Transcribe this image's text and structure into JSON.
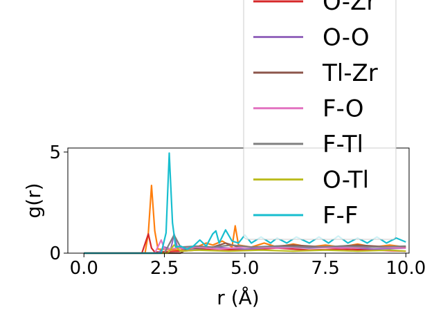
{
  "chart_data": {
    "type": "line",
    "title": "",
    "xlabel": "r (Å)",
    "ylabel": "g(r)",
    "xlim": [
      -0.5,
      10.1
    ],
    "ylim": [
      0,
      5.2
    ],
    "x_ticks": [
      "0.0",
      "2.5",
      "5.0",
      "7.5",
      "10.0"
    ],
    "x_tick_values": [
      0,
      2.5,
      5,
      7.5,
      10
    ],
    "y_ticks": [
      "0",
      "5"
    ],
    "y_tick_values": [
      0,
      5
    ],
    "grid": false,
    "legend_placement": "upper-right, extending above the axes",
    "series": [
      {
        "name": "O-Zr",
        "color": "#d62728",
        "points": [
          [
            0,
            0
          ],
          [
            1.8,
            0
          ],
          [
            2.0,
            0.95
          ],
          [
            2.1,
            0.25
          ],
          [
            2.2,
            0.05
          ],
          [
            3.0,
            0.1
          ],
          [
            4.0,
            0.2
          ],
          [
            5.0,
            0.15
          ],
          [
            6.0,
            0.25
          ],
          [
            7.0,
            0.15
          ],
          [
            8.0,
            0.2
          ],
          [
            9.0,
            0.15
          ],
          [
            10.0,
            0.1
          ]
        ]
      },
      {
        "name": "O-O",
        "color": "#9467bd",
        "points": [
          [
            0,
            0
          ],
          [
            2.3,
            0
          ],
          [
            2.5,
            0.3
          ],
          [
            2.7,
            0.2
          ],
          [
            2.8,
            0.95
          ],
          [
            2.9,
            0.3
          ],
          [
            3.2,
            0.15
          ],
          [
            4.0,
            0.3
          ],
          [
            5.0,
            0.2
          ],
          [
            6.0,
            0.3
          ],
          [
            7.0,
            0.25
          ],
          [
            8.0,
            0.3
          ],
          [
            9.0,
            0.2
          ],
          [
            10.0,
            0.25
          ]
        ]
      },
      {
        "name": "Tl-Zr",
        "color": "#8c564b",
        "points": [
          [
            0,
            0
          ],
          [
            3.0,
            0
          ],
          [
            3.3,
            0.3
          ],
          [
            3.6,
            0.2
          ],
          [
            4.0,
            0.3
          ],
          [
            4.4,
            0.5
          ],
          [
            4.8,
            0.3
          ],
          [
            5.5,
            0.3
          ],
          [
            6.5,
            0.4
          ],
          [
            7.5,
            0.3
          ],
          [
            8.5,
            0.4
          ],
          [
            9.5,
            0.3
          ],
          [
            10.0,
            0.3
          ]
        ]
      },
      {
        "name": "F-O",
        "color": "#e377c2",
        "points": [
          [
            0,
            0
          ],
          [
            2.2,
            0
          ],
          [
            2.4,
            0.65
          ],
          [
            2.5,
            0.2
          ],
          [
            3.0,
            0.25
          ],
          [
            3.5,
            0.3
          ],
          [
            4.2,
            0.2
          ],
          [
            5.0,
            0.3
          ],
          [
            6.0,
            0.25
          ],
          [
            7.0,
            0.3
          ],
          [
            8.0,
            0.25
          ],
          [
            9.0,
            0.3
          ],
          [
            10.0,
            0.25
          ]
        ]
      },
      {
        "name": "F-Tl",
        "color": "#7f7f7f",
        "points": [
          [
            0,
            0
          ],
          [
            2.5,
            0
          ],
          [
            2.8,
            0.9
          ],
          [
            3.0,
            0.3
          ],
          [
            3.5,
            0.35
          ],
          [
            4.0,
            0.3
          ],
          [
            4.6,
            0.4
          ],
          [
            5.2,
            0.3
          ],
          [
            6.0,
            0.35
          ],
          [
            7.0,
            0.3
          ],
          [
            8.0,
            0.35
          ],
          [
            9.0,
            0.3
          ],
          [
            10.0,
            0.35
          ]
        ]
      },
      {
        "name": "O-Tl",
        "color": "#bcbd22",
        "points": [
          [
            0,
            0
          ],
          [
            2.6,
            0
          ],
          [
            2.8,
            0.4
          ],
          [
            3.0,
            0.1
          ],
          [
            3.5,
            0.15
          ],
          [
            4.5,
            0.1
          ],
          [
            5.5,
            0.15
          ],
          [
            6.5,
            0.1
          ],
          [
            7.5,
            0.15
          ],
          [
            8.5,
            0.1
          ],
          [
            9.5,
            0.15
          ],
          [
            10.0,
            0.1
          ]
        ]
      },
      {
        "name": "F-F",
        "color": "#17becf",
        "points": [
          [
            0,
            0
          ],
          [
            2.4,
            0
          ],
          [
            2.55,
            1.0
          ],
          [
            2.65,
            4.95
          ],
          [
            2.75,
            1.5
          ],
          [
            2.85,
            0.3
          ],
          [
            3.0,
            0.35
          ],
          [
            3.2,
            0.2
          ],
          [
            3.4,
            0.35
          ],
          [
            3.6,
            0.65
          ],
          [
            3.8,
            0.35
          ],
          [
            4.0,
            0.95
          ],
          [
            4.1,
            1.1
          ],
          [
            4.2,
            0.5
          ],
          [
            4.4,
            1.15
          ],
          [
            4.6,
            0.6
          ],
          [
            4.8,
            0.5
          ],
          [
            5.0,
            0.9
          ],
          [
            5.2,
            0.5
          ],
          [
            5.5,
            0.8
          ],
          [
            5.8,
            0.5
          ],
          [
            6.0,
            0.75
          ],
          [
            6.3,
            0.5
          ],
          [
            6.6,
            0.8
          ],
          [
            7.0,
            0.5
          ],
          [
            7.3,
            0.8
          ],
          [
            7.6,
            0.5
          ],
          [
            7.9,
            0.85
          ],
          [
            8.2,
            0.5
          ],
          [
            8.5,
            0.75
          ],
          [
            8.8,
            0.5
          ],
          [
            9.1,
            0.8
          ],
          [
            9.4,
            0.5
          ],
          [
            9.7,
            0.75
          ],
          [
            10.0,
            0.55
          ]
        ]
      },
      {
        "name": "",
        "color": "#ff7f0e",
        "points": [
          [
            0,
            0
          ],
          [
            1.9,
            0
          ],
          [
            2.0,
            1.0
          ],
          [
            2.1,
            3.35
          ],
          [
            2.2,
            1.1
          ],
          [
            2.3,
            0.2
          ],
          [
            3.0,
            0.15
          ],
          [
            3.5,
            0.3
          ],
          [
            3.8,
            0.5
          ],
          [
            4.0,
            0.4
          ],
          [
            4.3,
            0.6
          ],
          [
            4.6,
            0.3
          ],
          [
            4.7,
            1.35
          ],
          [
            4.8,
            0.4
          ],
          [
            5.2,
            0.3
          ],
          [
            5.6,
            0.5
          ],
          [
            6.0,
            0.3
          ],
          [
            6.5,
            0.45
          ],
          [
            7.0,
            0.3
          ],
          [
            7.5,
            0.4
          ],
          [
            8.0,
            0.3
          ],
          [
            8.5,
            0.45
          ],
          [
            9.0,
            0.3
          ],
          [
            9.5,
            0.4
          ],
          [
            10.0,
            0.3
          ]
        ]
      }
    ]
  }
}
